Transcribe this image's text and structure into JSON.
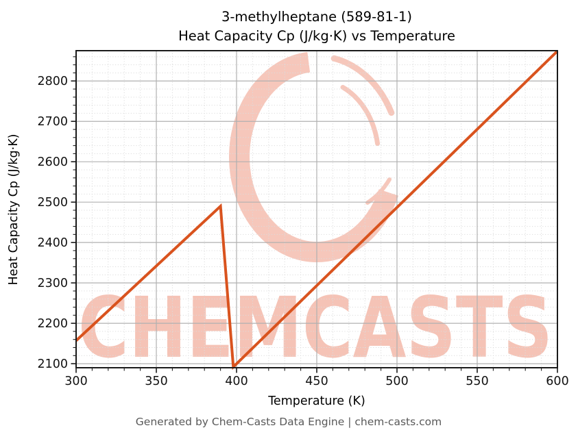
{
  "figure": {
    "title_line1": "3-methylheptane (589-81-1)",
    "title_line2": "Heat Capacity Cp (J/kg·K) vs Temperature",
    "footer": "Generated by Chem-Casts Data Engine | chem-casts.com"
  },
  "watermark": {
    "text": "CHEMCASTS",
    "logo": "brush-circle-logo",
    "color": "#f6c7bb",
    "text_color": "#f5c3b6"
  },
  "chart_data": {
    "type": "line",
    "title": "3-methylheptane (589-81-1) — Heat Capacity Cp (J/kg·K) vs Temperature",
    "xlabel": "Temperature (K)",
    "ylabel": "Heat Capacity Cp (J/kg·K)",
    "xlim": [
      300,
      600
    ],
    "ylim": [
      2090,
      2875
    ],
    "xticks": [
      300,
      350,
      400,
      450,
      500,
      550,
      600
    ],
    "yticks": [
      2100,
      2200,
      2300,
      2400,
      2500,
      2600,
      2700,
      2800
    ],
    "x_minor_step": 10,
    "y_minor_step": 20,
    "grid": {
      "major": true,
      "minor": true
    },
    "legend": false,
    "series": [
      {
        "name": "Heat Capacity Cp",
        "color": "#d9531e",
        "line_width": 4,
        "points": [
          [
            300,
            2157
          ],
          [
            390,
            2490
          ],
          [
            398,
            2092
          ],
          [
            600,
            2874
          ]
        ]
      }
    ],
    "colors": {
      "major_grid": "#b0b0b0",
      "minor_grid": "#dcdcdc",
      "spine": "#1a1a1a",
      "tick": "#1a1a1a"
    }
  }
}
